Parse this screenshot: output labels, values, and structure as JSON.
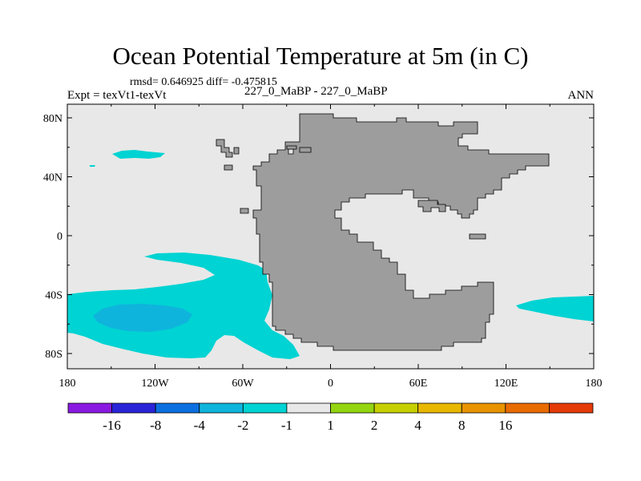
{
  "header": {
    "title": "Ocean Potential Temperature at 5m (in C)",
    "stats": "rmsd= 0.646925 diff= -0.475815",
    "experiment": "Expt = texVt1-texVt",
    "center_label": "227_0_MaBP - 227_0_MaBP",
    "season": "ANN"
  },
  "map": {
    "y_ticks": [
      {
        "value": 80,
        "label": "80N"
      },
      {
        "value": 40,
        "label": "40N"
      },
      {
        "value": 0,
        "label": "0"
      },
      {
        "value": -40,
        "label": "40S"
      },
      {
        "value": -80,
        "label": "80S"
      }
    ],
    "x_ticks": [
      {
        "value": -180,
        "label": "180"
      },
      {
        "value": -120,
        "label": "120W"
      },
      {
        "value": -60,
        "label": "60W"
      },
      {
        "value": 0,
        "label": "0"
      },
      {
        "value": 60,
        "label": "60E"
      },
      {
        "value": 120,
        "label": "120E"
      },
      {
        "value": 180,
        "label": "180"
      }
    ],
    "colors": {
      "ocean_background": "#e8e8e8",
      "land": "#9d9d9d",
      "anomaly_minus_1_to_minus_2": "#00d3d3",
      "anomaly_minus_2_to_minus_4": "#0fb4dc"
    }
  },
  "colorbar": {
    "bins": [
      {
        "color": "#8a19e1"
      },
      {
        "color": "#2a24d8"
      },
      {
        "color": "#0b6fe0"
      },
      {
        "color": "#0fb4dc"
      },
      {
        "color": "#00d3d3"
      },
      {
        "color": "#e8e8e8"
      },
      {
        "color": "#93d510"
      },
      {
        "color": "#c6cf00"
      },
      {
        "color": "#e8b700"
      },
      {
        "color": "#e89300"
      },
      {
        "color": "#e86b00"
      },
      {
        "color": "#e43a08"
      }
    ],
    "labels": [
      "-16",
      "-8",
      "-4",
      "-2",
      "-1",
      "1",
      "2",
      "4",
      "8",
      "16"
    ]
  }
}
